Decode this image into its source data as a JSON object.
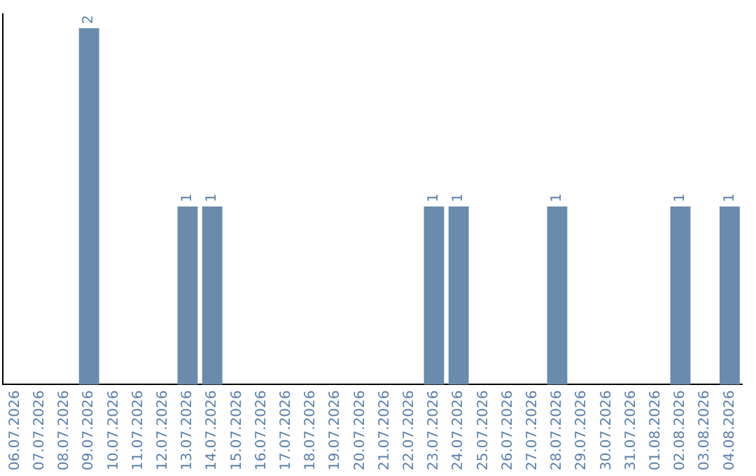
{
  "chart_data": {
    "type": "bar",
    "categories": [
      "06.07.2026",
      "07.07.2026",
      "08.07.2026",
      "09.07.2026",
      "10.07.2026",
      "11.07.2026",
      "12.07.2026",
      "13.07.2026",
      "14.07.2026",
      "15.07.2026",
      "16.07.2026",
      "17.07.2026",
      "18.07.2026",
      "19.07.2026",
      "20.07.2026",
      "21.07.2026",
      "22.07.2026",
      "23.07.2026",
      "24.07.2026",
      "25.07.2026",
      "26.07.2026",
      "27.07.2026",
      "28.07.2026",
      "29.07.2026",
      "30.07.2026",
      "31.07.2026",
      "01.08.2026",
      "02.08.2026",
      "03.08.2026",
      "04.08.2026"
    ],
    "values": [
      0,
      0,
      0,
      2,
      0,
      0,
      0,
      1,
      1,
      0,
      0,
      0,
      0,
      0,
      0,
      0,
      0,
      1,
      1,
      0,
      0,
      0,
      1,
      0,
      0,
      0,
      0,
      1,
      0,
      1
    ],
    "value_labels": [
      null,
      null,
      null,
      "2",
      null,
      null,
      null,
      "1",
      "1",
      null,
      null,
      null,
      null,
      null,
      null,
      null,
      null,
      "1",
      "1",
      null,
      null,
      null,
      "1",
      null,
      null,
      null,
      null,
      "1",
      null,
      "1"
    ],
    "color": "#6a8bab",
    "tick_labels": "x",
    "grid": false,
    "legend": false
  }
}
